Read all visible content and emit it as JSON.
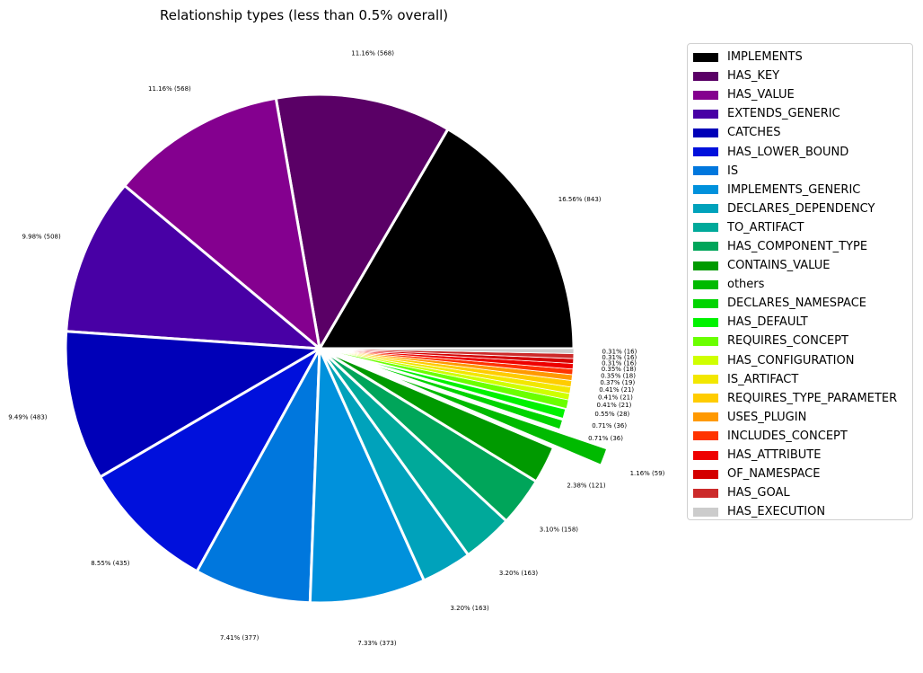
{
  "chart_data": {
    "type": "pie",
    "title": "Relationship types (less than 0.5% overall)",
    "legend_position": "right",
    "slices": [
      {
        "label": "IMPLEMENTS",
        "percent": 16.56,
        "count": 843,
        "text": "16.56% (843)",
        "color": "#000000",
        "explode": 0
      },
      {
        "label": "HAS_KEY",
        "percent": 11.16,
        "count": 568,
        "text": "11.16% (568)",
        "color": "#5a0066",
        "explode": 0
      },
      {
        "label": "HAS_VALUE",
        "percent": 11.16,
        "count": 568,
        "text": "11.16% (568)",
        "color": "#84008f",
        "explode": 0
      },
      {
        "label": "EXTENDS_GENERIC",
        "percent": 9.98,
        "count": 508,
        "text": "9.98% (508)",
        "color": "#4800a5",
        "explode": 0
      },
      {
        "label": "CATCHES",
        "percent": 9.49,
        "count": 483,
        "text": "9.49% (483)",
        "color": "#0000b8",
        "explode": 0
      },
      {
        "label": "HAS_LOWER_BOUND",
        "percent": 8.55,
        "count": 435,
        "text": "8.55% (435)",
        "color": "#0010dc",
        "explode": 0
      },
      {
        "label": "IS",
        "percent": 7.41,
        "count": 377,
        "text": "7.41% (377)",
        "color": "#0077dd",
        "explode": 0
      },
      {
        "label": "IMPLEMENTS_GENERIC",
        "percent": 7.33,
        "count": 373,
        "text": "7.33% (373)",
        "color": "#0091dc",
        "explode": 0
      },
      {
        "label": "DECLARES_DEPENDENCY",
        "percent": 3.2,
        "count": 163,
        "text": "3.20% (163)",
        "color": "#00a2bb",
        "explode": 0
      },
      {
        "label": "TO_ARTIFACT",
        "percent": 3.2,
        "count": 163,
        "text": "3.20% (163)",
        "color": "#00a99a",
        "explode": 0
      },
      {
        "label": "HAS_COMPONENT_TYPE",
        "percent": 3.1,
        "count": 158,
        "text": "3.10% (158)",
        "color": "#00a55a",
        "explode": 0
      },
      {
        "label": "CONTAINS_VALUE",
        "percent": 2.38,
        "count": 121,
        "text": "2.38% (121)",
        "color": "#009a00",
        "explode": 0
      },
      {
        "label": "others",
        "percent": 1.16,
        "count": 59,
        "text": "1.16% (59)",
        "color": "#00ba00",
        "explode": 0.2
      },
      {
        "label": "DECLARES_NAMESPACE",
        "percent": 0.71,
        "count": 36,
        "text": "0.71% (36)",
        "color": "#00d400",
        "explode": 0
      },
      {
        "label": "HAS_DEFAULT",
        "percent": 0.71,
        "count": 36,
        "text": "0.71% (36)",
        "color": "#00f200",
        "explode": 0
      },
      {
        "label": "REQUIRES_CONCEPT",
        "percent": 0.55,
        "count": 28,
        "text": "0.55% (28)",
        "color": "#6aff00",
        "explode": 0
      },
      {
        "label": "HAS_CONFIGURATION",
        "percent": 0.41,
        "count": 21,
        "text": "0.41% (21)",
        "color": "#cfff00",
        "explode": 0
      },
      {
        "label": "IS_ARTIFACT",
        "percent": 0.41,
        "count": 21,
        "text": "0.41% (21)",
        "color": "#f2e700",
        "explode": 0
      },
      {
        "label": "REQUIRES_TYPE_PARAMETER",
        "percent": 0.41,
        "count": 21,
        "text": "0.41% (21)",
        "color": "#ffcc00",
        "explode": 0
      },
      {
        "label": "USES_PLUGIN",
        "percent": 0.37,
        "count": 19,
        "text": "0.37% (19)",
        "color": "#ff9900",
        "explode": 0
      },
      {
        "label": "INCLUDES_CONCEPT",
        "percent": 0.35,
        "count": 18,
        "text": "0.35% (18)",
        "color": "#ff3300",
        "explode": 0
      },
      {
        "label": "HAS_ATTRIBUTE",
        "percent": 0.35,
        "count": 18,
        "text": "0.35% (18)",
        "color": "#ee0000",
        "explode": 0
      },
      {
        "label": "OF_NAMESPACE",
        "percent": 0.31,
        "count": 16,
        "text": "0.31% (16)",
        "color": "#d40000",
        "explode": 0
      },
      {
        "label": "HAS_GOAL",
        "percent": 0.31,
        "count": 16,
        "text": "0.31% (16)",
        "color": "#cc2a2a",
        "explode": 0
      },
      {
        "label": "HAS_EXECUTION",
        "percent": 0.31,
        "count": 16,
        "text": "0.31% (16)",
        "color": "#cccccc",
        "explode": 0
      }
    ]
  }
}
